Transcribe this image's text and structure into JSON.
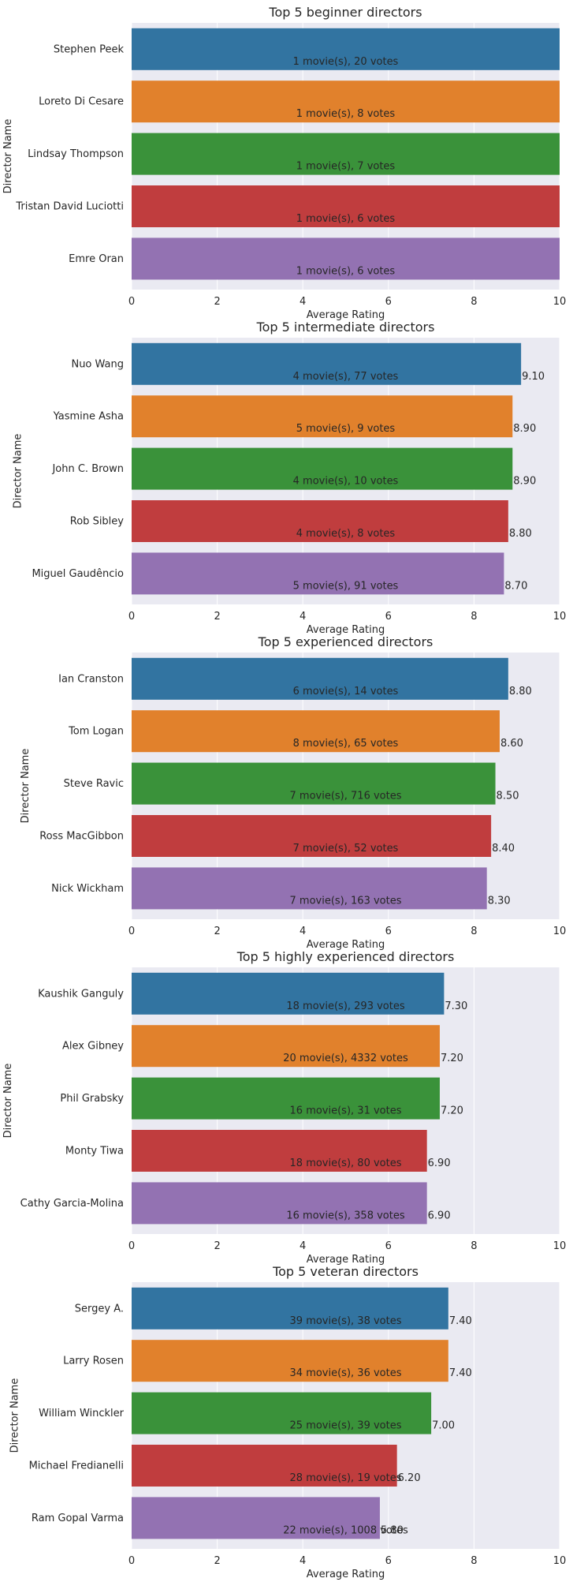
{
  "chart_data": [
    {
      "type": "bar",
      "orientation": "horizontal",
      "title": "Top 5 beginner directors",
      "xlabel": "Average Rating",
      "ylabel": "Director Name",
      "xlim": [
        0,
        10
      ],
      "x_ticks": [
        0,
        2,
        4,
        6,
        8,
        10
      ],
      "grid": true,
      "categories": [
        "Stephen Peek",
        "Loreto Di Cesare",
        "Lindsay Thompson",
        "Tristan David Luciotti",
        "Emre Oran"
      ],
      "values": [
        10,
        10,
        10,
        10,
        10
      ],
      "inner_labels": [
        "1 movie(s), 20 votes",
        "1 movie(s), 8 votes",
        "1 movie(s), 7 votes",
        "1 movie(s), 6 votes",
        "1 movie(s), 6 votes"
      ],
      "value_labels": [
        "",
        "",
        "",
        "",
        ""
      ]
    },
    {
      "type": "bar",
      "orientation": "horizontal",
      "title": "Top 5 intermediate directors",
      "xlabel": "Average Rating",
      "ylabel": "Director Name",
      "xlim": [
        0,
        10
      ],
      "x_ticks": [
        0,
        2,
        4,
        6,
        8,
        10
      ],
      "grid": true,
      "categories": [
        "Nuo Wang",
        "Yasmine Asha",
        "John C. Brown",
        "Rob Sibley",
        "Miguel Gaudêncio"
      ],
      "values": [
        9.1,
        8.9,
        8.9,
        8.8,
        8.7
      ],
      "inner_labels": [
        "4 movie(s), 77 votes",
        "5 movie(s), 9 votes",
        "4 movie(s), 10 votes",
        "4 movie(s), 8 votes",
        "5 movie(s), 91 votes"
      ],
      "value_labels": [
        "9.10",
        "8.90",
        "8.90",
        "8.80",
        "8.70"
      ]
    },
    {
      "type": "bar",
      "orientation": "horizontal",
      "title": "Top 5 experienced directors",
      "xlabel": "Average Rating",
      "ylabel": "Director Name",
      "xlim": [
        0,
        10
      ],
      "x_ticks": [
        0,
        2,
        4,
        6,
        8,
        10
      ],
      "grid": true,
      "categories": [
        "Ian Cranston",
        "Tom Logan",
        "Steve Ravic",
        "Ross MacGibbon",
        "Nick Wickham"
      ],
      "values": [
        8.8,
        8.6,
        8.5,
        8.4,
        8.3
      ],
      "inner_labels": [
        "6 movie(s), 14 votes",
        "8 movie(s), 65 votes",
        "7 movie(s), 716 votes",
        "7 movie(s), 52 votes",
        "7 movie(s), 163 votes"
      ],
      "value_labels": [
        "8.80",
        "8.60",
        "8.50",
        "8.40",
        "8.30"
      ]
    },
    {
      "type": "bar",
      "orientation": "horizontal",
      "title": "Top 5 highly experienced directors",
      "xlabel": "Average Rating",
      "ylabel": "Director Name",
      "xlim": [
        0,
        10
      ],
      "x_ticks": [
        0,
        2,
        4,
        6,
        8,
        10
      ],
      "grid": true,
      "categories": [
        "Kaushik Ganguly",
        "Alex Gibney",
        "Phil Grabsky",
        "Monty Tiwa",
        "Cathy Garcia-Molina"
      ],
      "values": [
        7.3,
        7.2,
        7.2,
        6.9,
        6.9
      ],
      "inner_labels": [
        "18 movie(s), 293 votes",
        "20 movie(s), 4332 votes",
        "16 movie(s), 31 votes",
        "18 movie(s), 80 votes",
        "16 movie(s), 358 votes"
      ],
      "value_labels": [
        "7.30",
        "7.20",
        "7.20",
        "6.90",
        "6.90"
      ]
    },
    {
      "type": "bar",
      "orientation": "horizontal",
      "title": "Top 5 veteran directors",
      "xlabel": "Average Rating",
      "ylabel": "Director Name",
      "xlim": [
        0,
        10
      ],
      "x_ticks": [
        0,
        2,
        4,
        6,
        8,
        10
      ],
      "grid": true,
      "categories": [
        "Sergey A.",
        "Larry Rosen",
        "William Winckler",
        "Michael Fredianelli",
        "Ram Gopal Varma"
      ],
      "values": [
        7.4,
        7.4,
        7.0,
        6.2,
        5.8
      ],
      "inner_labels": [
        "39 movie(s), 38 votes",
        "34 movie(s), 36 votes",
        "25 movie(s), 39 votes",
        "28 movie(s), 19 votes",
        "22 movie(s), 1008 votes"
      ],
      "value_labels": [
        "7.40",
        "7.40",
        "7.00",
        "6.20",
        "5.80"
      ]
    }
  ],
  "colors": {
    "background": "#eaeaf2",
    "grid": "#ffffff",
    "bars": [
      "#3274a1",
      "#e1812c",
      "#3a923a",
      "#c03d3e",
      "#9372b2"
    ]
  }
}
